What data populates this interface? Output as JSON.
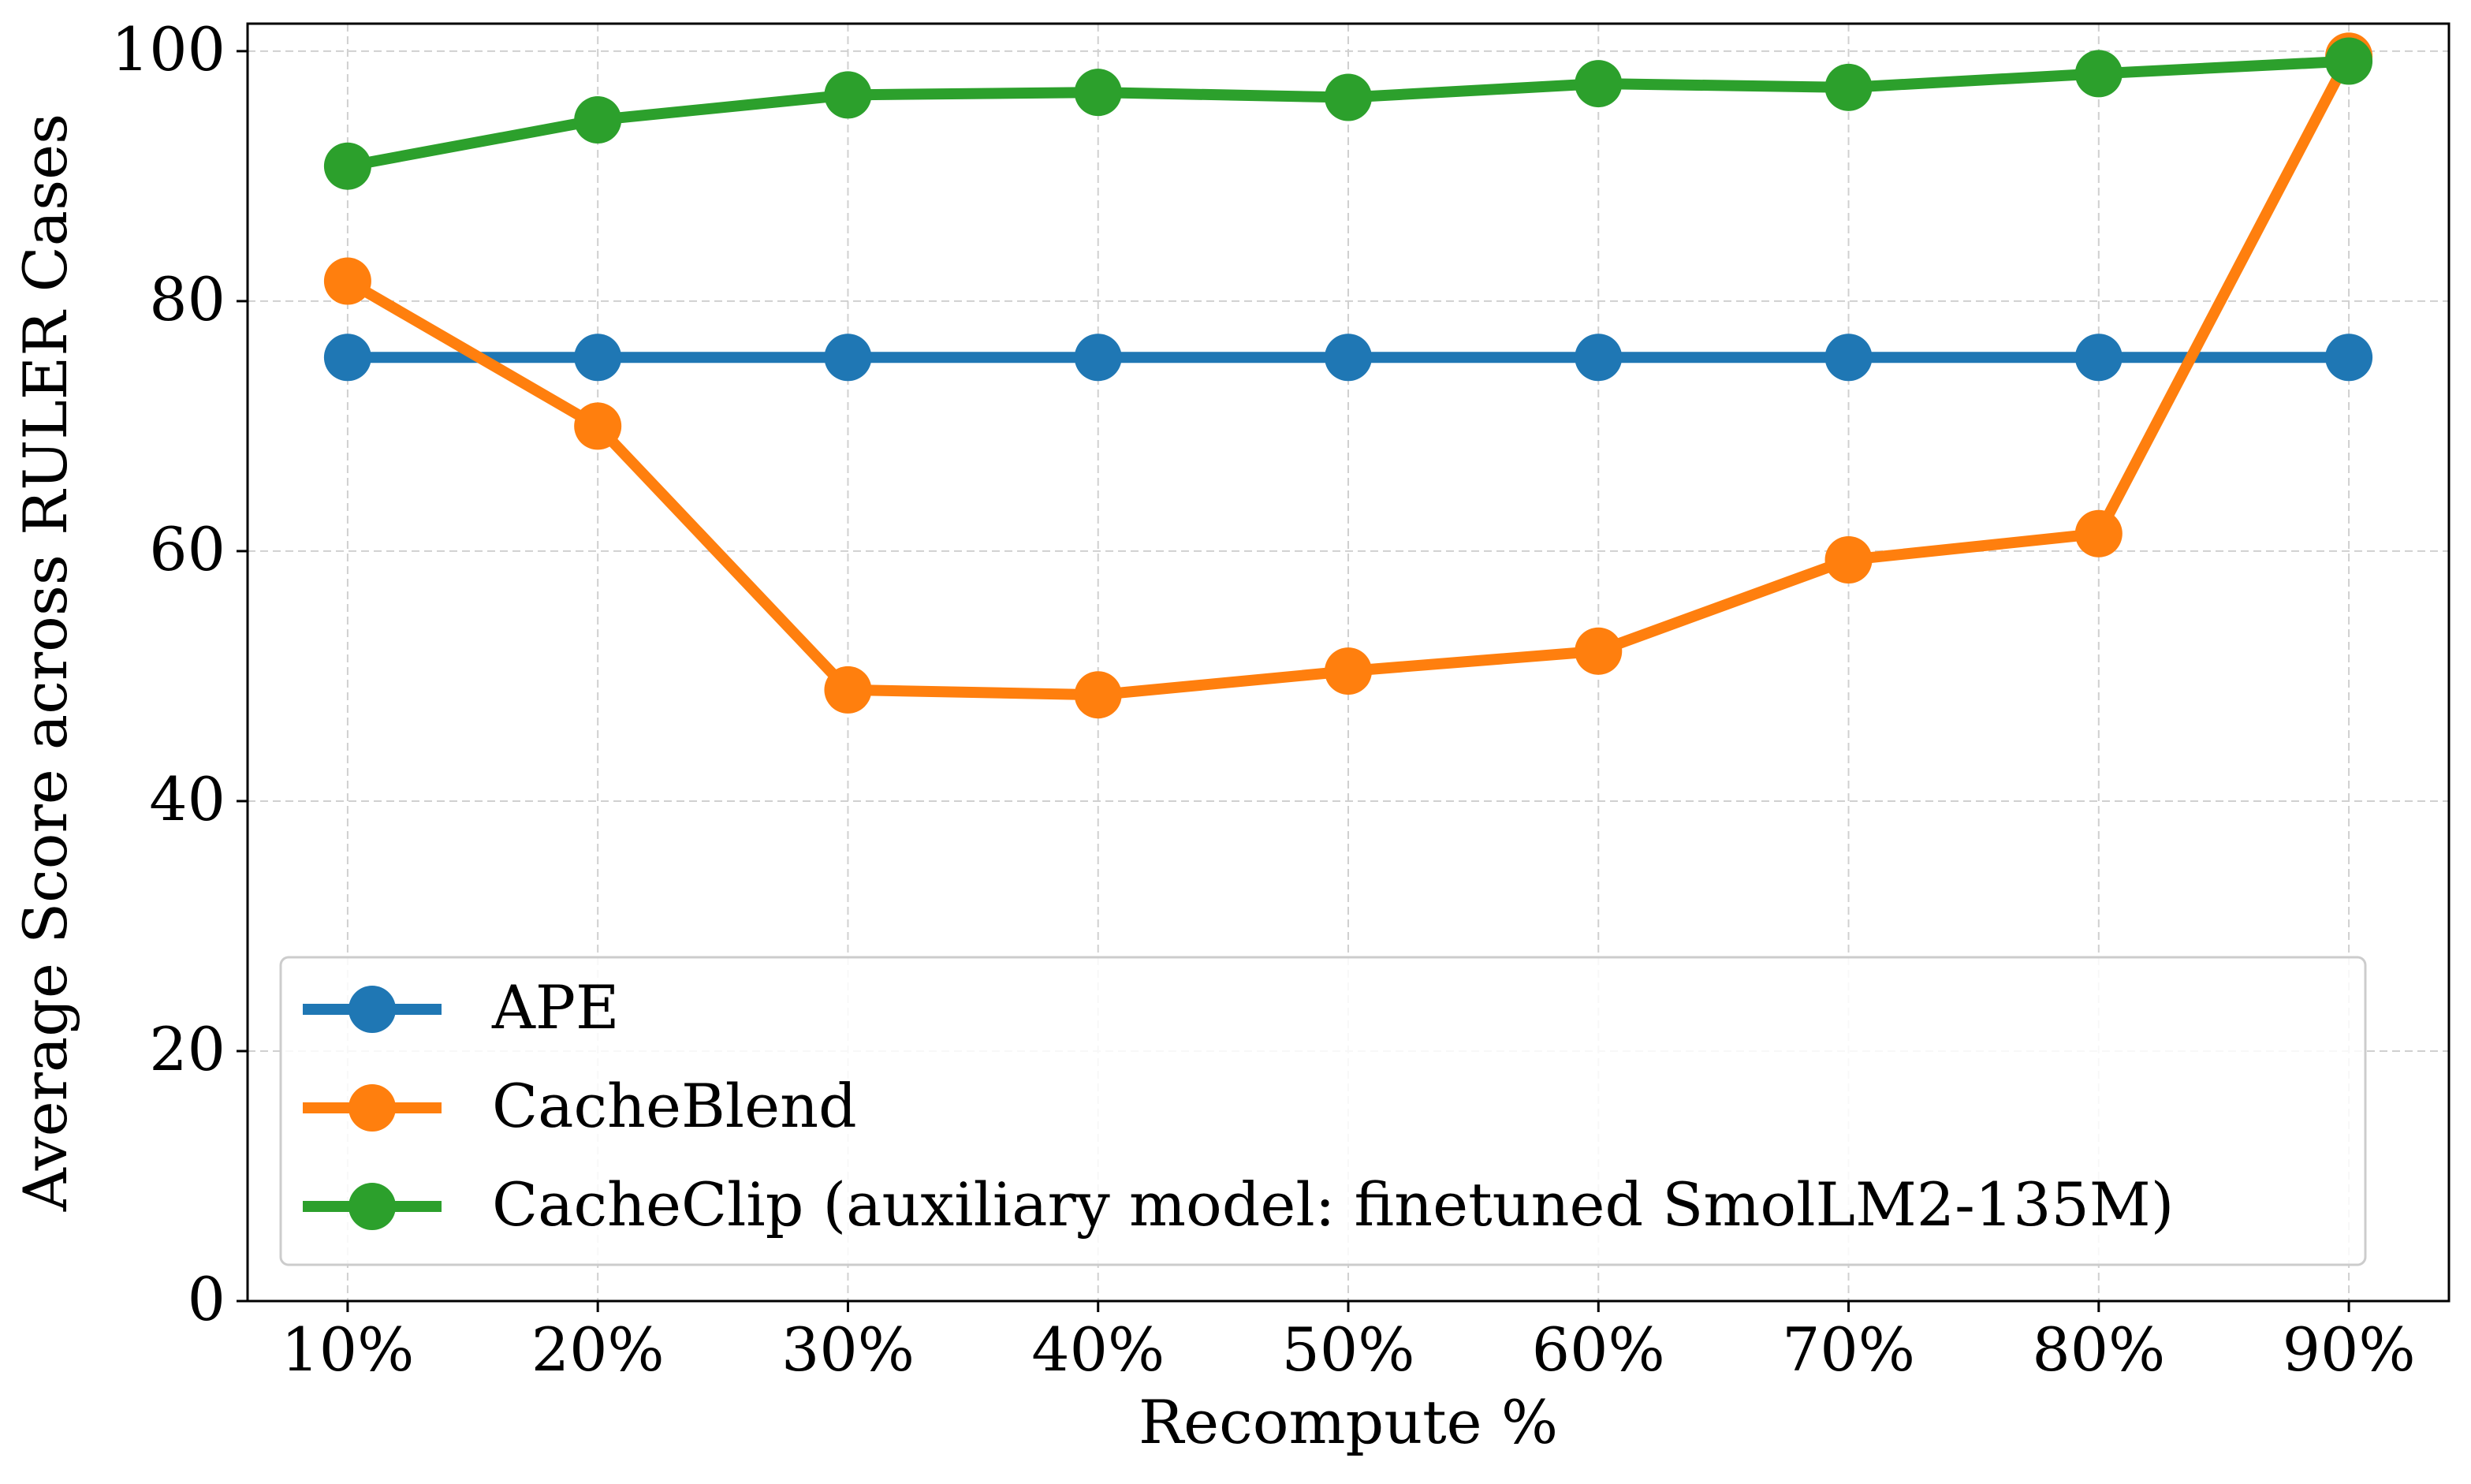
{
  "chart_data": {
    "type": "line",
    "x_label": "Recompute %",
    "y_label": "Average Score across RULER Cases",
    "categories": [
      "10%",
      "20%",
      "30%",
      "40%",
      "50%",
      "60%",
      "70%",
      "80%",
      "90%"
    ],
    "series": [
      {
        "name": "APE",
        "color": "#1f77b4",
        "values": [
          75.5,
          75.5,
          75.5,
          75.5,
          75.5,
          75.5,
          75.5,
          75.5,
          75.5
        ]
      },
      {
        "name": "CacheBlend",
        "color": "#ff7f0e",
        "values": [
          81.6,
          70.0,
          48.9,
          48.5,
          50.4,
          52.0,
          59.3,
          61.4,
          99.6
        ]
      },
      {
        "name": "CacheClip (auxiliary model: finetuned SmolLM2-135M)",
        "color": "#2ca02c",
        "values": [
          90.8,
          94.5,
          96.5,
          96.7,
          96.3,
          97.4,
          97.1,
          98.2,
          99.2
        ]
      }
    ],
    "ylim": [
      0,
      102.2
    ],
    "yticks": [
      0,
      20,
      40,
      60,
      80,
      100
    ],
    "grid": true,
    "legend": "lower left"
  }
}
